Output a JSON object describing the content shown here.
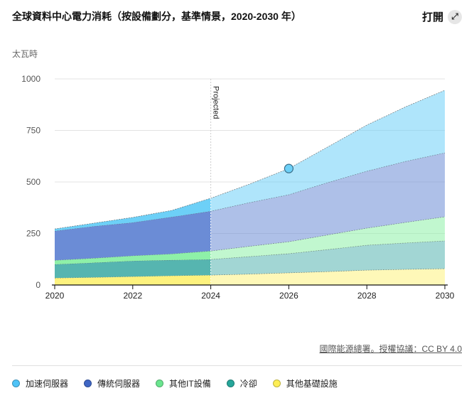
{
  "header": {
    "title": "全球資料中心電力消耗（按設備劃分，基準情景，2020-2030 年）",
    "open_label": "打開",
    "open_icon": "expand-icon"
  },
  "source": "國際能源總署。授權協議：CC BY 4.0",
  "chart_data": {
    "type": "area",
    "stacked": true,
    "title": "全球資料中心電力消耗（按設備劃分，基準情景，2020-2030 年）",
    "ylabel": "太瓦時",
    "ylim": [
      0,
      1000
    ],
    "yticks": [
      0,
      250,
      500,
      750,
      1000
    ],
    "xlim": [
      2020,
      2030
    ],
    "xticks": [
      2020,
      2022,
      2024,
      2026,
      2028,
      2030
    ],
    "grid": true,
    "legend_position": "bottom",
    "annotation": {
      "label": "Projected",
      "x": 2024
    },
    "highlight": {
      "x": 2026,
      "y": 565
    },
    "x": [
      2020,
      2021,
      2022,
      2023,
      2024,
      2025,
      2026,
      2027,
      2028,
      2029,
      2030
    ],
    "series": [
      {
        "name": "其他基礎設施",
        "color": "#fdf27e",
        "legend_color": "#fdee55",
        "values": [
          34,
          37,
          41,
          45,
          48,
          53,
          59,
          65,
          72,
          76,
          79
        ]
      },
      {
        "name": "冷卻",
        "color": "#56b5b0",
        "legend_color": "#26a69a",
        "values": [
          66,
          71,
          76,
          76,
          76,
          85,
          93,
          107,
          121,
          128,
          135
        ]
      },
      {
        "name": "其他IT設備",
        "color": "#8ef0a8",
        "legend_color": "#6be58f",
        "values": [
          20,
          22,
          25,
          30,
          41,
          50,
          58,
          71,
          83,
          100,
          117
        ]
      },
      {
        "name": "傳統伺服器",
        "color": "#6b8cd6",
        "legend_color": "#3f66c4",
        "values": [
          142,
          155,
          161,
          179,
          193,
          212,
          228,
          254,
          276,
          296,
          310
        ]
      },
      {
        "name": "加速伺服器",
        "color": "#6dd0f7",
        "legend_color": "#4fc3f7",
        "values": [
          10,
          15,
          25,
          32,
          63,
          90,
          127,
          173,
          224,
          265,
          304
        ]
      }
    ]
  }
}
